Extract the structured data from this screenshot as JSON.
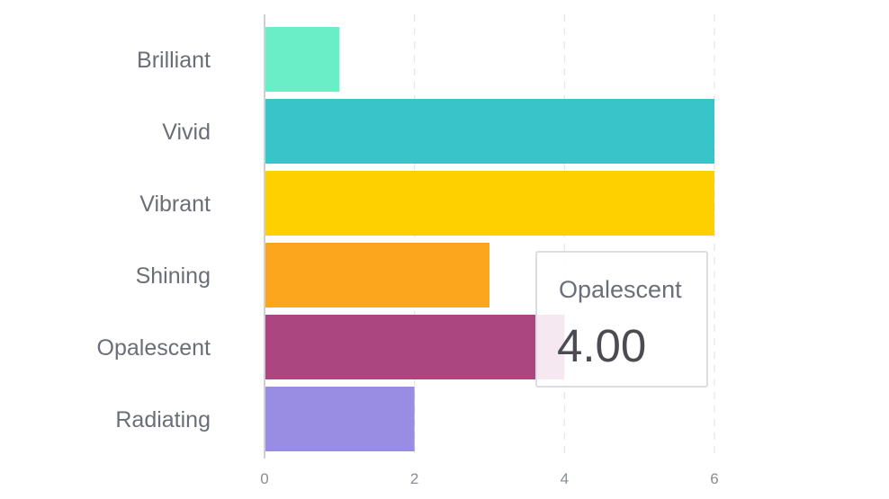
{
  "chart_data": {
    "type": "bar",
    "orientation": "horizontal",
    "categories": [
      "Brilliant",
      "Vivid",
      "Vibrant",
      "Shining",
      "Opalescent",
      "Radiating"
    ],
    "values": [
      1,
      6,
      6,
      3,
      4,
      2
    ],
    "colors": [
      "#6aeec8",
      "#38c4c9",
      "#ffd000",
      "#fca61e",
      "#ab4680",
      "#988ce3"
    ],
    "xlim": [
      0,
      6
    ],
    "x_ticks": [
      "0",
      "2",
      "4",
      "6"
    ],
    "grid": "vertical-dashed",
    "highlighted_index": 4,
    "tooltip": {
      "name": "Opalescent",
      "value": "4.00"
    }
  }
}
